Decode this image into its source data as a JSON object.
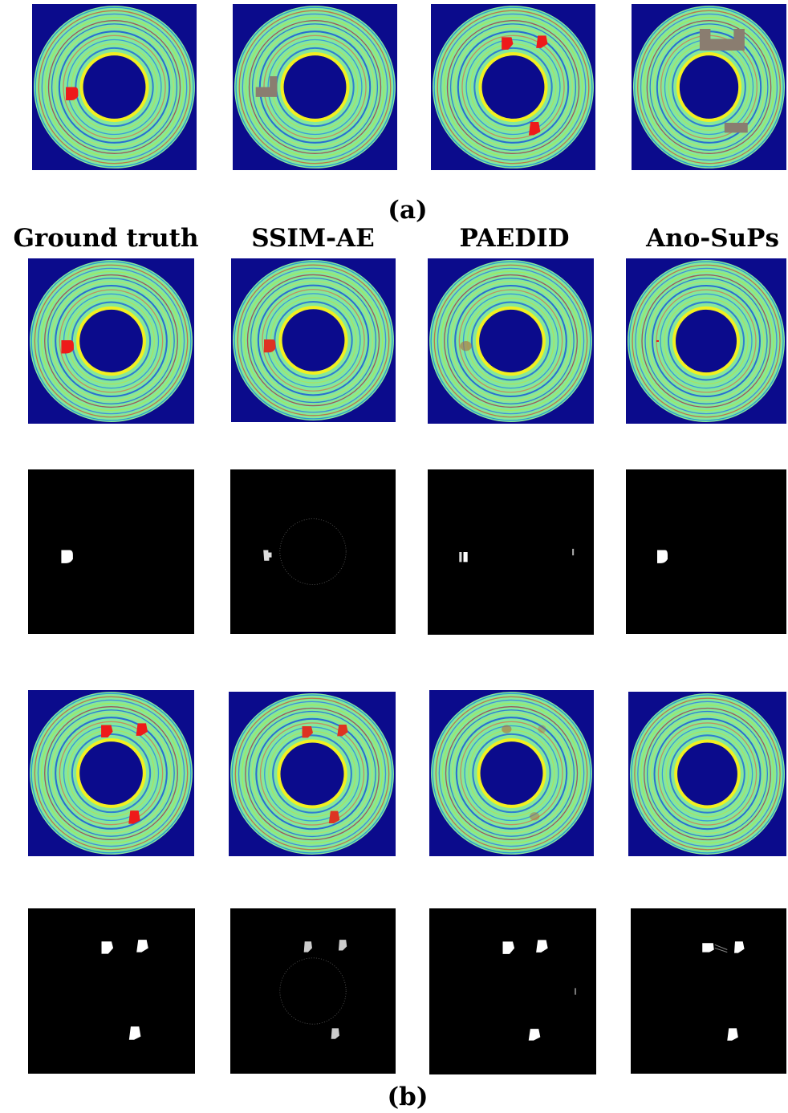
{
  "panel_a": {
    "label": "(a)"
  },
  "panel_b": {
    "label": "(b)",
    "columns": [
      "Ground truth",
      "SSIM-AE",
      "PAEDID",
      "Ano-SuPs"
    ]
  }
}
